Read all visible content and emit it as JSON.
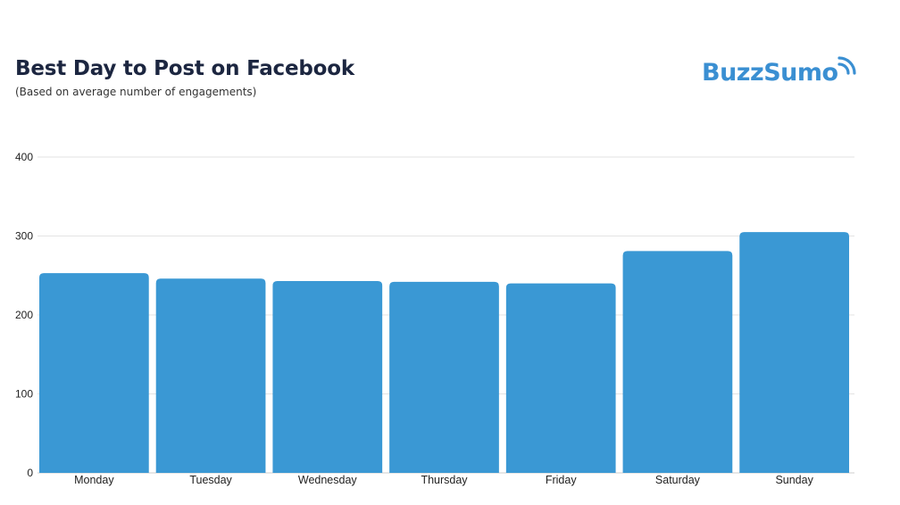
{
  "header": {
    "title": "Best Day to Post on Facebook",
    "subtitle": "(Based on average number of engagements)"
  },
  "logo": {
    "text": "BuzzSumo",
    "icon": "signal-waves-icon",
    "color": "#3a8fd2"
  },
  "chart_data": {
    "type": "bar",
    "title": "Best Day to Post on Facebook",
    "subtitle": "(Based on average number of engagements)",
    "xlabel": "",
    "ylabel": "",
    "categories": [
      "Monday",
      "Tuesday",
      "Wednesday",
      "Thursday",
      "Friday",
      "Saturday",
      "Sunday"
    ],
    "values": [
      253,
      246,
      243,
      242,
      240,
      281,
      305
    ],
    "ylim": [
      0,
      400
    ],
    "yticks": [
      0,
      100,
      200,
      300,
      400
    ],
    "grid": true,
    "bar_color": "#3a98d4",
    "grid_color": "#e3e3e3"
  }
}
